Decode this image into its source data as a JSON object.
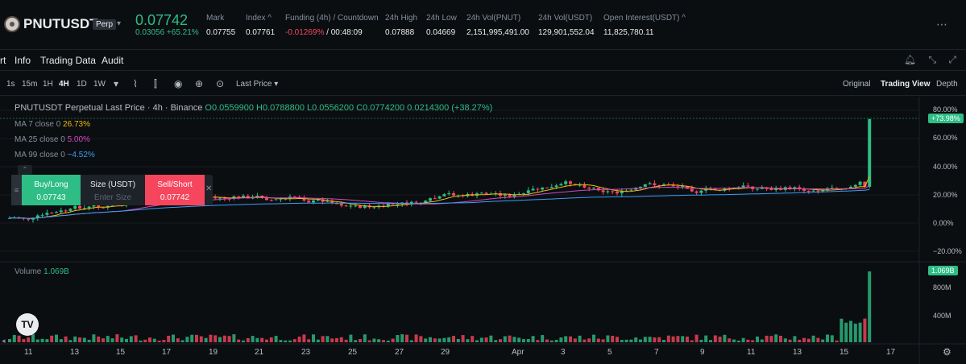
{
  "header": {
    "symbol": "PNUTUSDT",
    "badge": "Perp",
    "price": "0.07742",
    "change": "0.03056 +65.21%",
    "stats": [
      {
        "label": "Mark",
        "value": "0.07755",
        "neg": false
      },
      {
        "label": "Index ^",
        "value": "0.07761",
        "neg": false
      },
      {
        "label": "Funding (4h) / Countdown",
        "value": "-0.01269%",
        "value2": " / 00:48:09",
        "neg": true
      },
      {
        "label": "24h High",
        "value": "0.07888",
        "neg": false
      },
      {
        "label": "24h Low",
        "value": "0.04669",
        "neg": false
      },
      {
        "label": "24h Vol(PNUT)",
        "value": "2,151,995,491.00",
        "neg": false
      },
      {
        "label": "24h Vol(USDT)",
        "value": "129,901,552.04",
        "neg": false
      },
      {
        "label": "Open Interest(USDT) ^",
        "value": "11,825,780.11",
        "neg": false
      }
    ]
  },
  "tabs": [
    "rt",
    "Info",
    "Trading Data",
    "Audit"
  ],
  "timeframes": [
    "1s",
    "15m",
    "1H",
    "4H",
    "1D",
    "1W"
  ],
  "active_timeframe": "4H",
  "price_type": "Last Price",
  "views": [
    "Original",
    "Trading View",
    "Depth"
  ],
  "active_view": "Trading View",
  "legend": {
    "title": "PNUTUSDT Perpetual Last Price · 4h · Binance",
    "ohlc": "O0.0559900  H0.0788800  L0.0556200  C0.0774200  0.0214300 (+38.27%)",
    "ma": [
      {
        "label": "MA 7 close 0",
        "value": "26.73%",
        "color": "#f0b90b"
      },
      {
        "label": "MA 25 close 0",
        "value": "5.00%",
        "color": "#d147c5"
      },
      {
        "label": "MA 99 close 0",
        "value": "−4.52%",
        "color": "#3d9df3"
      }
    ]
  },
  "order": {
    "buy_label": "Buy/Long",
    "buy_price": "0.07743",
    "size_label": "Size (USDT)",
    "size_placeholder": "Enter Size",
    "sell_label": "Sell/Short",
    "sell_price": "0.07742"
  },
  "price_axis": [
    "80.00%",
    "60.00%",
    "40.00%",
    "20.00%",
    "0.00%",
    "−20.00%"
  ],
  "current_badge": "+73.98%",
  "volume": {
    "label": "Volume",
    "value": "1.069B",
    "badge": "1.069B",
    "axis": [
      "800M",
      "400M"
    ]
  },
  "dates": [
    "11",
    "13",
    "15",
    "17",
    "19",
    "21",
    "23",
    "25",
    "27",
    "29",
    "Apr",
    "3",
    "5",
    "7",
    "9",
    "11",
    "13",
    "15",
    "17"
  ],
  "colors": {
    "up": "#2ebd85",
    "down": "#f6465d",
    "bg": "#0b0e11"
  }
}
